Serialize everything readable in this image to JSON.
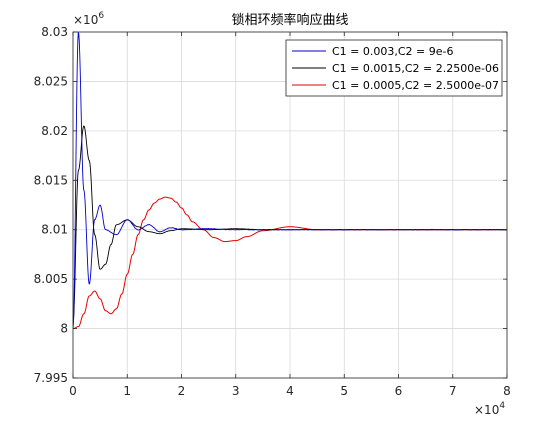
{
  "chart_data": {
    "type": "line",
    "title": "锁相环频率响应曲线",
    "xlabel": "",
    "ylabel": "",
    "xlim": [
      0,
      80000
    ],
    "ylim": [
      7995000,
      8030000
    ],
    "x_ticks": [
      0,
      10000,
      20000,
      30000,
      40000,
      50000,
      60000,
      70000,
      80000
    ],
    "x_tick_labels": [
      "0",
      "1",
      "2",
      "3",
      "4",
      "5",
      "6",
      "7",
      "8"
    ],
    "x_exponent": {
      "base": "×10",
      "power": "4"
    },
    "y_ticks": [
      7995000,
      8000000,
      8005000,
      8010000,
      8015000,
      8020000,
      8025000,
      8030000
    ],
    "y_tick_labels": [
      "7.995",
      "8",
      "8.005",
      "8.01",
      "8.015",
      "8.02",
      "8.025",
      "8.03"
    ],
    "y_exponent": {
      "base": "×10",
      "power": "6"
    },
    "grid": true,
    "legend_position": "top-right",
    "colors": {
      "blue": "#0000cc",
      "black": "#000000",
      "red": "#e60000",
      "grid": "#d9d9d9",
      "axes": "#262626"
    },
    "series": [
      {
        "name": "C1 = 0.003,C2 = 9e-6",
        "color": "#0000cc",
        "noise": 0.0014,
        "x": [
          0,
          1000,
          2000,
          3000,
          4000,
          5000,
          6000,
          8000,
          10000,
          12000,
          14000,
          16000,
          18000,
          20000,
          25000,
          30000,
          35000,
          40000,
          45000,
          50000,
          55000,
          60000,
          65000,
          70000,
          75000,
          80000
        ],
        "y": [
          8000000,
          8030000,
          8014000,
          8004500,
          8011000,
          8012500,
          8010000,
          8009500,
          8011000,
          8010000,
          8010500,
          8009800,
          8010200,
          8010000,
          8010100,
          8010000,
          8010000,
          8010000,
          8010000,
          8010000,
          8010000,
          8010000,
          8010000,
          8010000,
          8010000,
          8010000
        ]
      },
      {
        "name": "C1 = 0.0015,C2 = 2.2500e-06",
        "color": "#000000",
        "noise": 0.0006,
        "x": [
          0,
          1000,
          2000,
          3000,
          4000,
          5000,
          6000,
          7000,
          8000,
          10000,
          12000,
          14000,
          16000,
          18000,
          20000,
          25000,
          30000,
          35000,
          40000,
          45000,
          50000,
          55000,
          60000,
          65000,
          70000,
          75000,
          80000
        ],
        "y": [
          8000500,
          8016000,
          8020500,
          8017000,
          8009500,
          8006000,
          8006500,
          8008500,
          8010500,
          8011000,
          8010300,
          8009800,
          8009600,
          8009900,
          8010100,
          8010000,
          8010100,
          8010000,
          8010000,
          8010000,
          8010000,
          8010000,
          8010000,
          8010000,
          8010000,
          8010000,
          8010000
        ]
      },
      {
        "name": "C1 = 0.0005,C2 = 2.5000e-07",
        "color": "#e60000",
        "noise": 8e-05,
        "x": [
          0,
          1000,
          2000,
          3000,
          4000,
          5000,
          6000,
          7000,
          8000,
          9000,
          10000,
          11000,
          12000,
          13000,
          14000,
          15000,
          16000,
          17000,
          18000,
          19000,
          20000,
          21000,
          22000,
          24000,
          26000,
          28000,
          30000,
          32000,
          35000,
          40000,
          45000,
          50000,
          55000,
          60000,
          65000,
          70000,
          75000,
          80000
        ],
        "y": [
          8000000,
          8000200,
          8001500,
          8003300,
          8003800,
          8003000,
          8001800,
          8001500,
          8002000,
          8003500,
          8005500,
          8007500,
          8009500,
          8011000,
          8012000,
          8012700,
          8013100,
          8013300,
          8013200,
          8012800,
          8012200,
          8011500,
          8010800,
          8010000,
          8009200,
          8008800,
          8008900,
          8009300,
          8009900,
          8010300,
          8010000,
          8010000,
          8010000,
          8010000,
          8010000,
          8010000,
          8010000,
          8010000
        ]
      }
    ]
  }
}
